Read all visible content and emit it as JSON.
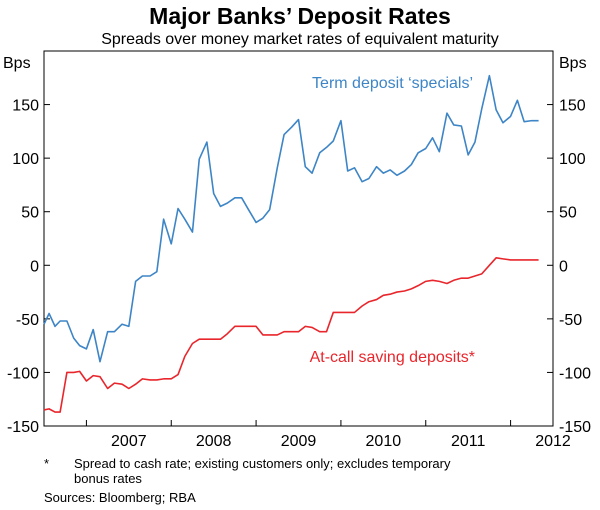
{
  "chart_data": {
    "type": "line",
    "title": "Major Banks’ Deposit Rates",
    "subtitle": "Spreads over money market rates of equivalent maturity",
    "ylabel_left": "Bps",
    "ylabel_right": "Bps",
    "ylim": [
      -150,
      200
    ],
    "yticks": [
      -150,
      -100,
      -50,
      0,
      50,
      100,
      150
    ],
    "xlim": [
      2006.5,
      2012.5
    ],
    "xticks": [
      "2007",
      "2008",
      "2009",
      "2010",
      "2011",
      "2012"
    ],
    "grid": false,
    "colors": {
      "term": "#3d85c6",
      "atcall": "#e8262c"
    },
    "series": [
      {
        "name": "Term deposit ‘specials’",
        "x": [
          2006.5,
          2006.56,
          2006.63,
          2006.69,
          2006.77,
          2006.85,
          2006.92,
          2007.0,
          2007.08,
          2007.16,
          2007.25,
          2007.33,
          2007.42,
          2007.5,
          2007.58,
          2007.66,
          2007.75,
          2007.83,
          2007.91,
          2008.0,
          2008.08,
          2008.16,
          2008.25,
          2008.33,
          2008.42,
          2008.5,
          2008.58,
          2008.66,
          2008.75,
          2008.83,
          2008.91,
          2009.0,
          2009.08,
          2009.16,
          2009.25,
          2009.33,
          2009.42,
          2009.5,
          2009.58,
          2009.66,
          2009.75,
          2009.83,
          2009.91,
          2010.0,
          2010.08,
          2010.16,
          2010.25,
          2010.33,
          2010.42,
          2010.5,
          2010.58,
          2010.66,
          2010.75,
          2010.83,
          2010.91,
          2011.0,
          2011.08,
          2011.16,
          2011.25,
          2011.33,
          2011.42,
          2011.5,
          2011.58,
          2011.66,
          2011.75,
          2011.83,
          2011.91,
          2012.0,
          2012.08,
          2012.16,
          2012.25,
          2012.33
        ],
        "values": [
          -55,
          -45,
          -57,
          -52,
          -52,
          -68,
          -75,
          -78,
          -60,
          -90,
          -62,
          -62,
          -55,
          -57,
          -15,
          -10,
          -10,
          -6,
          43,
          20,
          53,
          43,
          31,
          99,
          115,
          67,
          55,
          58,
          63,
          63,
          52,
          40,
          44,
          52,
          91,
          122,
          129,
          136,
          92,
          86,
          105,
          110,
          116,
          135,
          88,
          91,
          78,
          81,
          92,
          86,
          89,
          84,
          88,
          94,
          105,
          109,
          119,
          106,
          142,
          131,
          130,
          103,
          115,
          146,
          177,
          145,
          133,
          139,
          154,
          134,
          135,
          135
        ],
        "label_pos": "top-right"
      },
      {
        "name": "At-call saving deposits*",
        "x": [
          2006.5,
          2006.56,
          2006.63,
          2006.69,
          2006.77,
          2006.85,
          2006.92,
          2007.0,
          2007.08,
          2007.16,
          2007.25,
          2007.33,
          2007.42,
          2007.5,
          2007.58,
          2007.66,
          2007.75,
          2007.83,
          2007.91,
          2008.0,
          2008.08,
          2008.16,
          2008.25,
          2008.33,
          2008.42,
          2008.5,
          2008.58,
          2008.66,
          2008.75,
          2008.83,
          2008.91,
          2009.0,
          2009.08,
          2009.16,
          2009.25,
          2009.33,
          2009.42,
          2009.5,
          2009.58,
          2009.66,
          2009.75,
          2009.83,
          2009.91,
          2010.0,
          2010.08,
          2010.16,
          2010.25,
          2010.33,
          2010.42,
          2010.5,
          2010.58,
          2010.66,
          2010.75,
          2010.83,
          2010.91,
          2011.0,
          2011.08,
          2011.16,
          2011.25,
          2011.33,
          2011.42,
          2011.5,
          2011.58,
          2011.66,
          2011.75,
          2011.83,
          2011.91,
          2012.0,
          2012.08,
          2012.16,
          2012.25,
          2012.33
        ],
        "values": [
          -135,
          -134,
          -137,
          -137,
          -100,
          -100,
          -99,
          -108,
          -103,
          -104,
          -115,
          -110,
          -111,
          -115,
          -111,
          -106,
          -107,
          -107,
          -106,
          -106,
          -102,
          -85,
          -73,
          -69,
          -69,
          -69,
          -69,
          -64,
          -57,
          -57,
          -57,
          -57,
          -65,
          -65,
          -65,
          -62,
          -62,
          -62,
          -57,
          -58,
          -62,
          -62,
          -44,
          -44,
          -44,
          -44,
          -38,
          -34,
          -32,
          -28,
          -27,
          -25,
          -24,
          -22,
          -19,
          -15,
          -14,
          -15,
          -17,
          -14,
          -12,
          -12,
          -10,
          -8,
          0,
          7,
          6,
          5,
          5,
          5,
          5,
          5
        ],
        "label_pos": "center-right"
      }
    ],
    "footnote": "*    Spread to cash rate; existing customers only; excludes temporary bonus rates",
    "footnote_line1": "*",
    "footnote_text1": "Spread to cash rate; existing customers only; excludes temporary",
    "footnote_text2": "bonus rates",
    "sources": "Sources: Bloomberg; RBA"
  }
}
